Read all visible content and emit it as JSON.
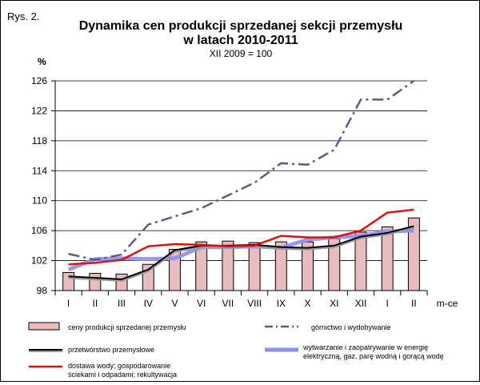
{
  "figure_label": "Rys. 2.",
  "chart_data": {
    "type": "bar+line",
    "title_line1": "Dynamika cen produkcji sprzedanej sekcji przemysłu",
    "title_line2": "w latach 2010-2011",
    "subtitle": "XII 2009 = 100",
    "ylabel": "%",
    "xlabel": "m-ce",
    "ylim": [
      98,
      126
    ],
    "yticks": [
      98,
      102,
      106,
      110,
      114,
      118,
      122,
      126
    ],
    "ytick_labels": [
      "98",
      "102",
      "106",
      "110",
      "114",
      "118",
      "122",
      "126"
    ],
    "grid": "horizontal",
    "categories": [
      "I",
      "II",
      "III",
      "IV",
      "V",
      "VI",
      "VII",
      "VIII",
      "IX",
      "X",
      "XI",
      "XII",
      "I",
      "II"
    ],
    "bars": {
      "name": "ceny produkcji sprzedanej przemysłu",
      "color": "#e8bcbc",
      "values": [
        100.4,
        100.3,
        100.2,
        101.5,
        103.5,
        104.5,
        104.6,
        104.4,
        104.5,
        104.5,
        104.9,
        105.8,
        106.5,
        107.7
      ]
    },
    "series": [
      {
        "name": "górnictwo i wydobywanie",
        "color": "#5a5a8c",
        "style": "dashdot",
        "values": [
          102.9,
          102.1,
          102.8,
          106.8,
          107.9,
          109.0,
          110.7,
          112.4,
          115.0,
          114.8,
          116.8,
          123.5,
          123.5,
          126.0
        ]
      },
      {
        "name": "przetwórstwo przemysłowe",
        "color": "#000000",
        "style": "solid-shadow",
        "values": [
          99.9,
          99.7,
          99.5,
          100.8,
          103.4,
          104.0,
          104.0,
          104.1,
          103.8,
          103.7,
          104.0,
          105.2,
          105.7,
          106.6
        ]
      },
      {
        "name": "wytwarzanie  i zaopatrywanie  w energię elektryczną, gaz, parę wodną i gorącą wodę",
        "name_line1": "wytwarzanie  i zaopatrywanie  w energię",
        "name_line2": "elektryczną, gaz, parę wodną i gorącą wodę",
        "color": "#8e8ef0",
        "style": "thick",
        "values": [
          100.8,
          102.2,
          102.3,
          102.2,
          102.3,
          103.8,
          103.8,
          103.9,
          103.7,
          104.8,
          105.1,
          105.3,
          105.9,
          106.0
        ]
      },
      {
        "name": "dostawa wody; gospodarowanie ściekami i odpadami; rekultywacja",
        "name_line1": "dostawa wody; gospodarowanie",
        "name_line2": "ściekami i odpadami; rekultywacja",
        "color": "#e01010",
        "style": "solid",
        "values": [
          101.5,
          101.7,
          102.1,
          103.9,
          104.2,
          104.1,
          103.9,
          104.0,
          105.3,
          105.1,
          105.1,
          106.0,
          108.4,
          108.8
        ]
      }
    ],
    "legend_position": "bottom"
  }
}
